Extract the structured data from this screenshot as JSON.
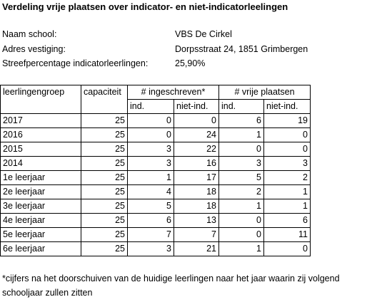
{
  "title": "Verdeling vrije plaatsen over indicator- en niet-indicatorleelingen",
  "info": [
    {
      "label": "Naam school:",
      "value": "VBS De Cirkel"
    },
    {
      "label": "Adres vestiging:",
      "value": "Dorpsstraat 24, 1851 Grimbergen"
    },
    {
      "label": "Streefpercentage indicatorleerlingen:",
      "value": "25,90%"
    }
  ],
  "table": {
    "headers": [
      "leerlingengroep",
      "capaciteit",
      "# ingeschreven*",
      "# vrije plaatsen"
    ],
    "subheaders": [
      "ind.",
      "niet-ind.",
      "ind.",
      "niet-ind."
    ],
    "rows": [
      [
        "2017",
        25,
        0,
        0,
        6,
        19
      ],
      [
        "2016",
        25,
        0,
        24,
        1,
        0
      ],
      [
        "2015",
        25,
        3,
        22,
        0,
        0
      ],
      [
        "2014",
        25,
        3,
        16,
        3,
        3
      ],
      [
        "1e leerjaar",
        25,
        1,
        17,
        5,
        2
      ],
      [
        "2e leerjaar",
        25,
        4,
        18,
        2,
        1
      ],
      [
        "3e leerjaar",
        25,
        5,
        18,
        1,
        1
      ],
      [
        "4e leerjaar",
        25,
        6,
        13,
        0,
        6
      ],
      [
        "5e leerjaar",
        25,
        7,
        7,
        0,
        11
      ],
      [
        "6e leerjaar",
        25,
        3,
        21,
        1,
        0
      ]
    ]
  },
  "footnote": [
    "*cijfers na het doorschuiven van de huidige leerlingen naar het jaar waarin zij volgend",
    "schooljaar zullen zitten"
  ]
}
